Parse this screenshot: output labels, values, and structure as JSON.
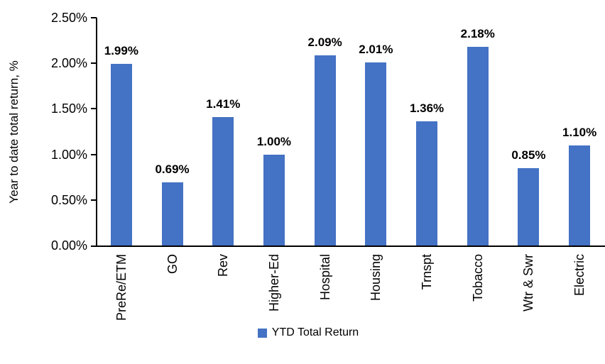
{
  "chart_data": {
    "type": "bar",
    "title": "",
    "xlabel": "",
    "ylabel": "Year to date total return, %",
    "categories": [
      "PreRe/ETM",
      "GO",
      "Rev",
      "Higher-Ed",
      "Hospital",
      "Housing",
      "Trnspt",
      "Tobacco",
      "Wtr & Swr",
      "Electric"
    ],
    "series": [
      {
        "name": "YTD Total Return",
        "values": [
          1.99,
          0.69,
          1.41,
          1.0,
          2.09,
          2.01,
          1.36,
          2.18,
          0.85,
          1.1
        ],
        "data_labels": [
          "1.99%",
          "0.69%",
          "1.41%",
          "1.00%",
          "2.09%",
          "2.01%",
          "1.36%",
          "2.18%",
          "0.85%",
          "1.10%"
        ],
        "color": "#4472C4"
      }
    ],
    "y_ticks": [
      "0.00%",
      "0.50%",
      "1.00%",
      "1.50%",
      "2.00%",
      "2.50%"
    ],
    "ylim": [
      0,
      2.5
    ],
    "grid": false,
    "legend_position": "bottom",
    "axis_color": "#000000",
    "text_color": "#000000"
  }
}
